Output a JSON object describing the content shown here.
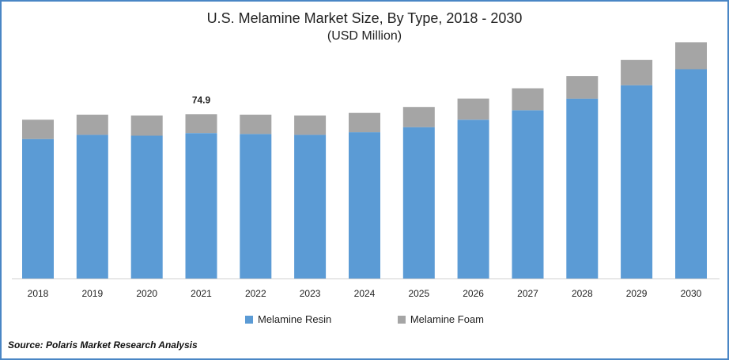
{
  "title": "U.S. Melamine Market Size, By Type, 2018 - 2030",
  "subtitle": "(USD Million)",
  "source": "Source: Polaris Market Research Analysis",
  "chart_data": {
    "type": "bar",
    "stacked": true,
    "categories": [
      "2018",
      "2019",
      "2020",
      "2021",
      "2022",
      "2023",
      "2024",
      "2025",
      "2026",
      "2027",
      "2028",
      "2029",
      "2030"
    ],
    "series": [
      {
        "name": "Melamine Resin",
        "color": "#5b9bd5",
        "values": [
          63.6,
          65.5,
          65.1,
          66.3,
          65.9,
          65.5,
          66.7,
          69.0,
          72.4,
          76.7,
          82.0,
          88.1,
          95.4
        ]
      },
      {
        "name": "Melamine Foam",
        "color": "#a5a5a5",
        "values": [
          8.8,
          9.2,
          9.2,
          8.6,
          8.8,
          8.8,
          8.8,
          9.2,
          9.6,
          10.0,
          10.3,
          11.5,
          12.3
        ]
      }
    ],
    "data_labels": [
      {
        "category": "2021",
        "text": "74.9"
      }
    ],
    "legend_position": "bottom",
    "grid": false,
    "ylim": [
      0,
      110
    ]
  }
}
